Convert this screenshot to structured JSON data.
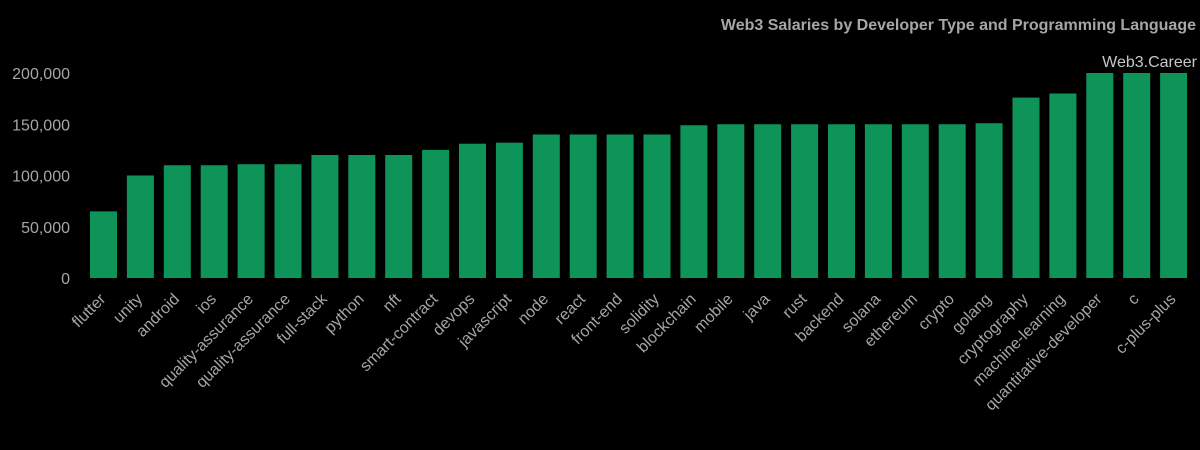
{
  "chart_data": {
    "type": "bar",
    "title": "Web3 Salaries by Developer Type and Programming Language",
    "watermark": "Web3.Career",
    "xlabel": "",
    "ylabel": "",
    "ylim": [
      0,
      200000
    ],
    "y_ticks": [
      0,
      50000,
      100000,
      150000,
      200000
    ],
    "y_tick_labels": [
      "0",
      "50,000",
      "100,000",
      "150,000",
      "200,000"
    ],
    "grid": false,
    "categories": [
      "flutter",
      "unity",
      "android",
      "ios",
      "quality-assurance",
      "quality-assurance",
      "full-stack",
      "python",
      "nft",
      "smart-contract",
      "devops",
      "javascript",
      "node",
      "react",
      "front-end",
      "solidity",
      "blockchain",
      "mobile",
      "java",
      "rust",
      "backend",
      "solana",
      "ethereum",
      "crypto",
      "golang",
      "cryptography",
      "machine-learning",
      "quantitative-developer",
      "c",
      "c-plus-plus"
    ],
    "values": [
      65000,
      100000,
      110000,
      110000,
      111000,
      111000,
      120000,
      120000,
      120000,
      125000,
      131000,
      132000,
      140000,
      140000,
      140000,
      140000,
      149000,
      150000,
      150000,
      150000,
      150000,
      150000,
      150000,
      150000,
      151000,
      176000,
      180000,
      200000,
      200000,
      200000
    ],
    "colors": {
      "bar": "#0e9459",
      "text": "#a6a6a6",
      "watermark": "#c8c8c8",
      "background": "#000000"
    }
  }
}
